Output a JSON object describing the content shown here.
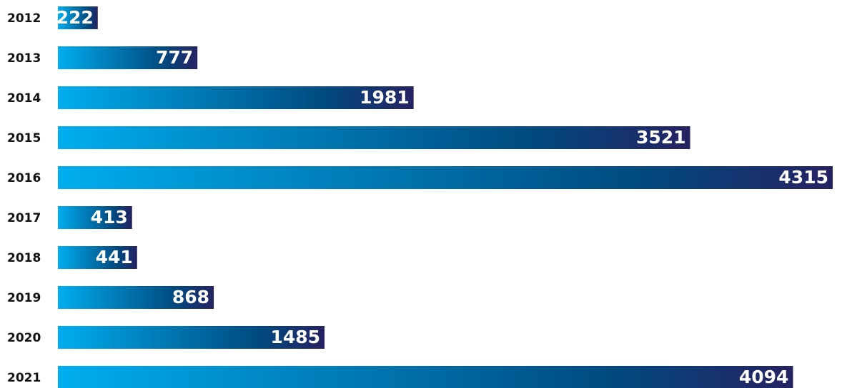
{
  "chart_data": {
    "type": "bar",
    "orientation": "horizontal",
    "categories": [
      "2012",
      "2013",
      "2014",
      "2015",
      "2016",
      "2017",
      "2018",
      "2019",
      "2020",
      "2021"
    ],
    "values": [
      222,
      777,
      1981,
      3521,
      4315,
      413,
      441,
      868,
      1485,
      4094
    ],
    "gradient": [
      "#00aeef",
      "#262262"
    ]
  }
}
